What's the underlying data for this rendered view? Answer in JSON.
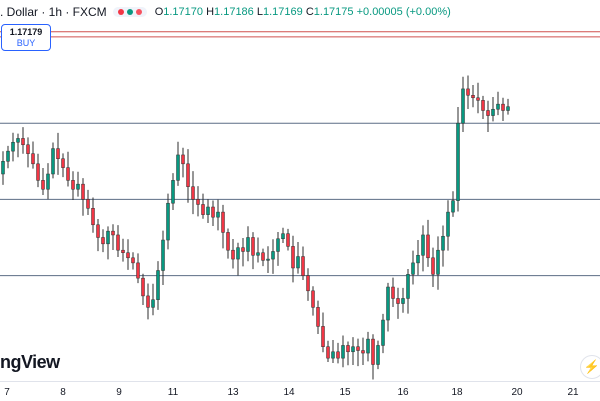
{
  "legend": {
    "title": ". Dollar · 1h · FXCM",
    "dots": [
      "#f23645",
      "#089981",
      "#f7525f"
    ],
    "ohlc": {
      "o_label": "O",
      "o": "1.17170",
      "h_label": "H",
      "h": "1.17186",
      "l_label": "L",
      "l": "1.17169",
      "c_label": "C",
      "c": "1.17175",
      "change": "+0.00005 (+0.00%)"
    }
  },
  "order": {
    "price": "1.17179",
    "side": "BUY"
  },
  "logo_text": "ngView",
  "side_button_icon": "lightning-icon",
  "colors": {
    "up": "#089981",
    "down": "#f23645",
    "body": "#2e2e2e",
    "hline_red": "#d0504f",
    "hline_blue": "#5b6d85",
    "axis_border": "#e0e3eb"
  },
  "chart_data": {
    "type": "candlestick",
    "x_axis_labels": [
      "7",
      "8",
      "9",
      "11",
      "13",
      "14",
      "15",
      "16",
      "18",
      "20",
      "21"
    ],
    "horizontal_levels": [
      {
        "kind": "red",
        "value": 1.1822
      },
      {
        "kind": "red",
        "value": 1.1818
      },
      {
        "kind": "blue",
        "value": 1.175
      },
      {
        "kind": "blue",
        "value": 1.169
      },
      {
        "kind": "blue",
        "value": 1.163
      }
    ],
    "ylim": [
      1.1547,
      1.1847
    ],
    "xlim": [
      0,
      120
    ],
    "candle_spacing": 5,
    "closes": [
      1.172,
      1.1728,
      1.1735,
      1.1738,
      1.1733,
      1.1726,
      1.1718,
      1.1705,
      1.1698,
      1.171,
      1.173,
      1.1722,
      1.1715,
      1.1705,
      1.1698,
      1.1702,
      1.169,
      1.1683,
      1.167,
      1.166,
      1.1655,
      1.1665,
      1.1662,
      1.165,
      1.1648,
      1.1644,
      1.164,
      1.1628,
      1.1614,
      1.1605,
      1.1611,
      1.1634,
      1.1658,
      1.1687,
      1.1705,
      1.1725,
      1.1718,
      1.17,
      1.169,
      1.1686,
      1.1678,
      1.1684,
      1.1676,
      1.168,
      1.1664,
      1.165,
      1.1643,
      1.1652,
      1.1649,
      1.166,
      1.1646,
      1.1648,
      1.1642,
      1.1643,
      1.1649,
      1.1659,
      1.1663,
      1.1653,
      1.1636,
      1.1645,
      1.163,
      1.1618,
      1.1605,
      1.159,
      1.1574,
      1.1565,
      1.157,
      1.1565,
      1.1575,
      1.157,
      1.1574,
      1.1571,
      1.1569,
      1.158,
      1.156,
      1.1575,
      1.1595,
      1.1621,
      1.1612,
      1.1608,
      1.1612,
      1.1631,
      1.164,
      1.1646,
      1.1662,
      1.1644,
      1.1631,
      1.165,
      1.1661,
      1.168,
      1.1689,
      1.175,
      1.1777,
      1.1772,
      1.177,
      1.1768,
      1.176,
      1.1756,
      1.1761,
      1.1765,
      1.176,
      1.1763
    ],
    "open_first": 1.171
  }
}
